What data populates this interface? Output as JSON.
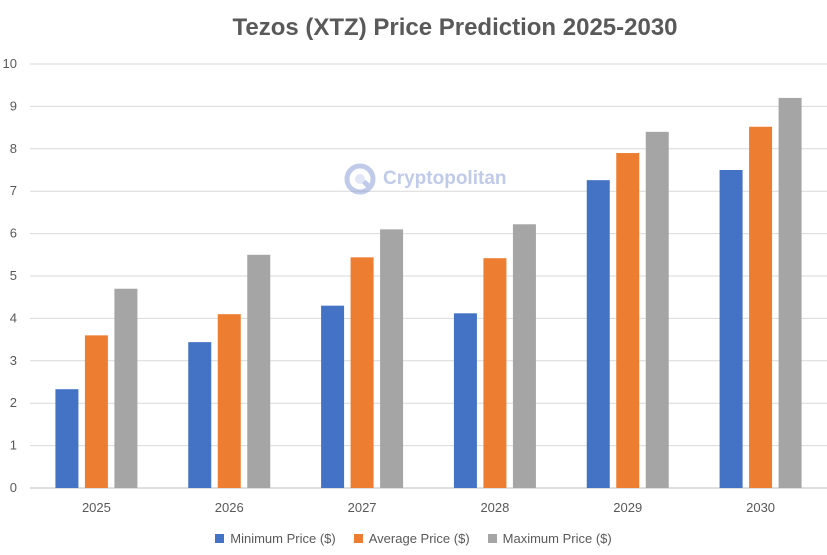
{
  "chart_data": {
    "type": "bar",
    "title": "Tezos (XTZ) Price Prediction 2025-2030",
    "categories": [
      "2025",
      "2026",
      "2027",
      "2028",
      "2029",
      "2030"
    ],
    "series": [
      {
        "name": "Minimum Price ($)",
        "color": "#4472C4",
        "values": [
          2.33,
          3.44,
          4.3,
          4.12,
          7.26,
          7.5
        ]
      },
      {
        "name": "Average Price ($)",
        "color": "#ED7D31",
        "values": [
          3.6,
          4.1,
          5.44,
          5.42,
          7.9,
          8.52
        ]
      },
      {
        "name": "Maximum Price ($)",
        "color": "#A5A5A5",
        "values": [
          4.7,
          5.5,
          6.1,
          6.22,
          8.4,
          9.2
        ]
      }
    ],
    "ylim": [
      0,
      10
    ],
    "yticks": [
      "0",
      "1",
      "2",
      "3",
      "4",
      "5",
      "6",
      "7",
      "8",
      "9",
      "10"
    ],
    "grid": true,
    "legend_position": "bottom",
    "watermark": "Cryptopolitan"
  }
}
